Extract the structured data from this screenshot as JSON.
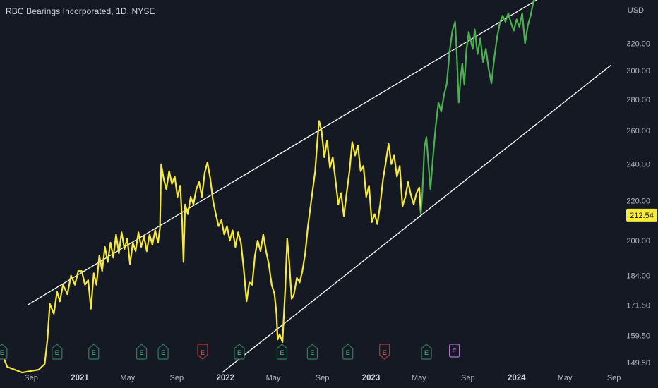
{
  "header": {
    "title": "RBC Bearings Incorporated, 1D, NYSE",
    "currency": "USD"
  },
  "last_price": "212.54",
  "colors": {
    "background": "#151924",
    "series_yellow": "#f5e93a",
    "series_green": "#4caf50",
    "channel": "#ffffff",
    "price_tag": "#f5e93a",
    "earnings_green": "#2e7d5b",
    "earnings_red": "#b23b3b",
    "earnings_purple": "#b26fd1"
  },
  "chart_data": {
    "type": "line",
    "scale": "log",
    "x_range": [
      "2020-06-15",
      "2024-09-30"
    ],
    "y_range": [
      148,
      355
    ],
    "y_ticks": [
      "320.00",
      "300.00",
      "280.00",
      "260.00",
      "240.00",
      "220.00",
      "200.00",
      "184.00",
      "171.50",
      "159.50",
      "149.50"
    ],
    "x_ticks": [
      {
        "label": "Sep",
        "date": "2020-09-01",
        "bold": false
      },
      {
        "label": "2021",
        "date": "2021-01-01",
        "bold": true
      },
      {
        "label": "May",
        "date": "2021-05-01",
        "bold": false
      },
      {
        "label": "Sep",
        "date": "2021-09-01",
        "bold": false
      },
      {
        "label": "2022",
        "date": "2022-01-01",
        "bold": true
      },
      {
        "label": "May",
        "date": "2022-05-01",
        "bold": false
      },
      {
        "label": "Sep",
        "date": "2022-09-01",
        "bold": false
      },
      {
        "label": "2023",
        "date": "2023-01-01",
        "bold": true
      },
      {
        "label": "May",
        "date": "2023-05-01",
        "bold": false
      },
      {
        "label": "Sep",
        "date": "2023-09-01",
        "bold": false
      },
      {
        "label": "2024",
        "date": "2024-01-01",
        "bold": true
      },
      {
        "label": "May",
        "date": "2024-05-01",
        "bold": false
      },
      {
        "label": "Sep",
        "date": "2024-09-01",
        "bold": false
      }
    ],
    "series": [
      {
        "color": "#f5e93a",
        "points": [
          [
            "2020-06-22",
            152
          ],
          [
            "2020-07-03",
            148
          ],
          [
            "2020-08-10",
            146
          ],
          [
            "2020-09-20",
            147
          ],
          [
            "2020-10-05",
            149
          ],
          [
            "2020-10-12",
            158
          ],
          [
            "2020-10-18",
            172
          ],
          [
            "2020-10-28",
            168
          ],
          [
            "2020-11-05",
            177
          ],
          [
            "2020-11-12",
            173
          ],
          [
            "2020-11-20",
            180
          ],
          [
            "2020-12-01",
            176
          ],
          [
            "2020-12-10",
            184
          ],
          [
            "2020-12-20",
            180
          ],
          [
            "2020-12-28",
            186
          ],
          [
            "2021-01-06",
            186
          ],
          [
            "2021-01-14",
            180
          ],
          [
            "2021-01-22",
            182
          ],
          [
            "2021-01-29",
            170
          ],
          [
            "2021-02-05",
            185
          ],
          [
            "2021-02-12",
            180
          ],
          [
            "2021-02-19",
            193
          ],
          [
            "2021-02-26",
            186
          ],
          [
            "2021-03-05",
            197
          ],
          [
            "2021-03-12",
            190
          ],
          [
            "2021-03-19",
            199
          ],
          [
            "2021-03-26",
            192
          ],
          [
            "2021-04-02",
            203
          ],
          [
            "2021-04-09",
            194
          ],
          [
            "2021-04-16",
            204
          ],
          [
            "2021-04-23",
            196
          ],
          [
            "2021-04-30",
            201
          ],
          [
            "2021-05-07",
            189
          ],
          [
            "2021-05-14",
            199
          ],
          [
            "2021-05-21",
            195
          ],
          [
            "2021-05-28",
            204
          ],
          [
            "2021-06-04",
            197
          ],
          [
            "2021-06-11",
            202
          ],
          [
            "2021-06-18",
            195
          ],
          [
            "2021-06-25",
            203
          ],
          [
            "2021-07-02",
            198
          ],
          [
            "2021-07-09",
            205
          ],
          [
            "2021-07-16",
            199
          ],
          [
            "2021-07-21",
            206
          ],
          [
            "2021-07-24",
            240
          ],
          [
            "2021-07-30",
            232
          ],
          [
            "2021-08-06",
            226
          ],
          [
            "2021-08-13",
            236
          ],
          [
            "2021-08-20",
            229
          ],
          [
            "2021-08-27",
            233
          ],
          [
            "2021-09-03",
            222
          ],
          [
            "2021-09-10",
            228
          ],
          [
            "2021-09-15",
            208
          ],
          [
            "2021-09-18",
            190
          ],
          [
            "2021-09-22",
            218
          ],
          [
            "2021-09-29",
            213
          ],
          [
            "2021-10-06",
            222
          ],
          [
            "2021-10-13",
            218
          ],
          [
            "2021-10-20",
            226
          ],
          [
            "2021-10-27",
            230
          ],
          [
            "2021-11-03",
            222
          ],
          [
            "2021-11-10",
            235
          ],
          [
            "2021-11-17",
            241
          ],
          [
            "2021-11-24",
            232
          ],
          [
            "2021-12-01",
            220
          ],
          [
            "2021-12-08",
            213
          ],
          [
            "2021-12-15",
            207
          ],
          [
            "2021-12-22",
            210
          ],
          [
            "2021-12-29",
            203
          ],
          [
            "2022-01-05",
            207
          ],
          [
            "2022-01-12",
            200
          ],
          [
            "2022-01-19",
            205
          ],
          [
            "2022-01-26",
            197
          ],
          [
            "2022-02-02",
            204
          ],
          [
            "2022-02-09",
            199
          ],
          [
            "2022-02-16",
            187
          ],
          [
            "2022-02-23",
            173
          ],
          [
            "2022-03-02",
            181
          ],
          [
            "2022-03-09",
            180
          ],
          [
            "2022-03-16",
            193
          ],
          [
            "2022-03-23",
            200
          ],
          [
            "2022-03-30",
            195
          ],
          [
            "2022-04-06",
            203
          ],
          [
            "2022-04-13",
            195
          ],
          [
            "2022-04-20",
            189
          ],
          [
            "2022-04-27",
            180
          ],
          [
            "2022-05-04",
            176
          ],
          [
            "2022-05-09",
            168
          ],
          [
            "2022-05-12",
            158
          ],
          [
            "2022-05-17",
            160
          ],
          [
            "2022-05-24",
            157
          ],
          [
            "2022-05-31",
            178
          ],
          [
            "2022-06-05",
            201
          ],
          [
            "2022-06-10",
            190
          ],
          [
            "2022-06-16",
            174
          ],
          [
            "2022-06-22",
            176
          ],
          [
            "2022-06-29",
            183
          ],
          [
            "2022-07-06",
            181
          ],
          [
            "2022-07-13",
            186
          ],
          [
            "2022-07-20",
            194
          ],
          [
            "2022-07-27",
            207
          ],
          [
            "2022-08-03",
            218
          ],
          [
            "2022-08-08",
            226
          ],
          [
            "2022-08-14",
            236
          ],
          [
            "2022-08-19",
            252
          ],
          [
            "2022-08-24",
            266
          ],
          [
            "2022-08-30",
            260
          ],
          [
            "2022-09-06",
            244
          ],
          [
            "2022-09-13",
            254
          ],
          [
            "2022-09-20",
            238
          ],
          [
            "2022-09-27",
            244
          ],
          [
            "2022-10-04",
            231
          ],
          [
            "2022-10-11",
            218
          ],
          [
            "2022-10-18",
            224
          ],
          [
            "2022-10-25",
            212
          ],
          [
            "2022-11-01",
            224
          ],
          [
            "2022-11-08",
            236
          ],
          [
            "2022-11-15",
            253
          ],
          [
            "2022-11-22",
            245
          ],
          [
            "2022-11-29",
            251
          ],
          [
            "2022-12-06",
            236
          ],
          [
            "2022-12-13",
            239
          ],
          [
            "2022-12-20",
            222
          ],
          [
            "2022-12-27",
            228
          ],
          [
            "2023-01-03",
            209
          ],
          [
            "2023-01-10",
            213
          ],
          [
            "2023-01-17",
            208
          ],
          [
            "2023-01-24",
            218
          ],
          [
            "2023-01-31",
            231
          ],
          [
            "2023-02-07",
            241
          ],
          [
            "2023-02-14",
            252
          ],
          [
            "2023-02-21",
            240
          ],
          [
            "2023-02-28",
            245
          ],
          [
            "2023-03-07",
            233
          ],
          [
            "2023-03-14",
            239
          ],
          [
            "2023-03-21",
            217
          ],
          [
            "2023-03-28",
            222
          ],
          [
            "2023-04-04",
            230
          ],
          [
            "2023-04-11",
            223
          ],
          [
            "2023-04-18",
            218
          ],
          [
            "2023-04-25",
            224
          ],
          [
            "2023-05-02",
            227
          ],
          [
            "2023-05-06",
            213
          ]
        ]
      },
      {
        "color": "#4caf50",
        "points": [
          [
            "2023-05-06",
            213
          ],
          [
            "2023-05-10",
            225
          ],
          [
            "2023-05-15",
            250
          ],
          [
            "2023-05-20",
            256
          ],
          [
            "2023-05-24",
            243
          ],
          [
            "2023-05-30",
            226
          ],
          [
            "2023-06-05",
            243
          ],
          [
            "2023-06-12",
            262
          ],
          [
            "2023-06-19",
            278
          ],
          [
            "2023-06-26",
            272
          ],
          [
            "2023-07-03",
            283
          ],
          [
            "2023-07-10",
            291
          ],
          [
            "2023-07-17",
            314
          ],
          [
            "2023-07-24",
            330
          ],
          [
            "2023-07-31",
            337
          ],
          [
            "2023-08-04",
            312
          ],
          [
            "2023-08-09",
            278
          ],
          [
            "2023-08-14",
            296
          ],
          [
            "2023-08-18",
            305
          ],
          [
            "2023-08-23",
            290
          ],
          [
            "2023-08-28",
            314
          ],
          [
            "2023-09-03",
            329
          ],
          [
            "2023-09-08",
            322
          ],
          [
            "2023-09-13",
            316
          ],
          [
            "2023-09-18",
            331
          ],
          [
            "2023-09-25",
            312
          ],
          [
            "2023-10-02",
            324
          ],
          [
            "2023-10-09",
            306
          ],
          [
            "2023-10-16",
            316
          ],
          [
            "2023-10-23",
            301
          ],
          [
            "2023-10-30",
            291
          ],
          [
            "2023-11-06",
            309
          ],
          [
            "2023-11-13",
            325
          ],
          [
            "2023-11-20",
            336
          ],
          [
            "2023-11-27",
            342
          ],
          [
            "2023-12-04",
            337
          ],
          [
            "2023-12-11",
            344
          ],
          [
            "2023-12-18",
            336
          ],
          [
            "2023-12-25",
            330
          ],
          [
            "2024-01-01",
            339
          ],
          [
            "2024-01-08",
            333
          ],
          [
            "2024-01-15",
            344
          ],
          [
            "2024-01-22",
            320
          ],
          [
            "2024-01-29",
            334
          ],
          [
            "2024-02-05",
            342
          ],
          [
            "2024-02-10",
            350
          ],
          [
            "2024-02-14",
            356
          ]
        ]
      }
    ],
    "channel": {
      "upper": [
        [
          "2020-08-23",
          171.5
        ],
        [
          "2024-03-01",
          357
        ]
      ],
      "lower": [
        [
          "2021-12-24",
          146
        ],
        [
          "2024-08-25",
          304
        ]
      ]
    },
    "earnings": [
      {
        "date": "2020-06-20",
        "type": "E",
        "color": "#2e7d5b",
        "shape": "badge"
      },
      {
        "date": "2020-11-05",
        "type": "E",
        "color": "#2e7d5b",
        "shape": "badge"
      },
      {
        "date": "2021-02-05",
        "type": "E",
        "color": "#2e7d5b",
        "shape": "badge"
      },
      {
        "date": "2021-06-05",
        "type": "E",
        "color": "#2e7d5b",
        "shape": "badge"
      },
      {
        "date": "2021-07-29",
        "type": "E",
        "color": "#2e7d5b",
        "shape": "badge"
      },
      {
        "date": "2021-11-05",
        "type": "E",
        "color": "#b23b3b",
        "shape": "pin"
      },
      {
        "date": "2022-02-05",
        "type": "E",
        "color": "#2e7d5b",
        "shape": "badge"
      },
      {
        "date": "2022-05-23",
        "type": "E",
        "color": "#2e7d5b",
        "shape": "badge"
      },
      {
        "date": "2022-08-07",
        "type": "E",
        "color": "#2e7d5b",
        "shape": "badge"
      },
      {
        "date": "2022-11-04",
        "type": "E",
        "color": "#2e7d5b",
        "shape": "badge"
      },
      {
        "date": "2023-02-04",
        "type": "E",
        "color": "#b23b3b",
        "shape": "pin"
      },
      {
        "date": "2023-05-20",
        "type": "E",
        "color": "#2e7d5b",
        "shape": "badge"
      },
      {
        "date": "2023-07-29",
        "type": "E",
        "color": "#b26fd1",
        "shape": "square"
      }
    ]
  }
}
